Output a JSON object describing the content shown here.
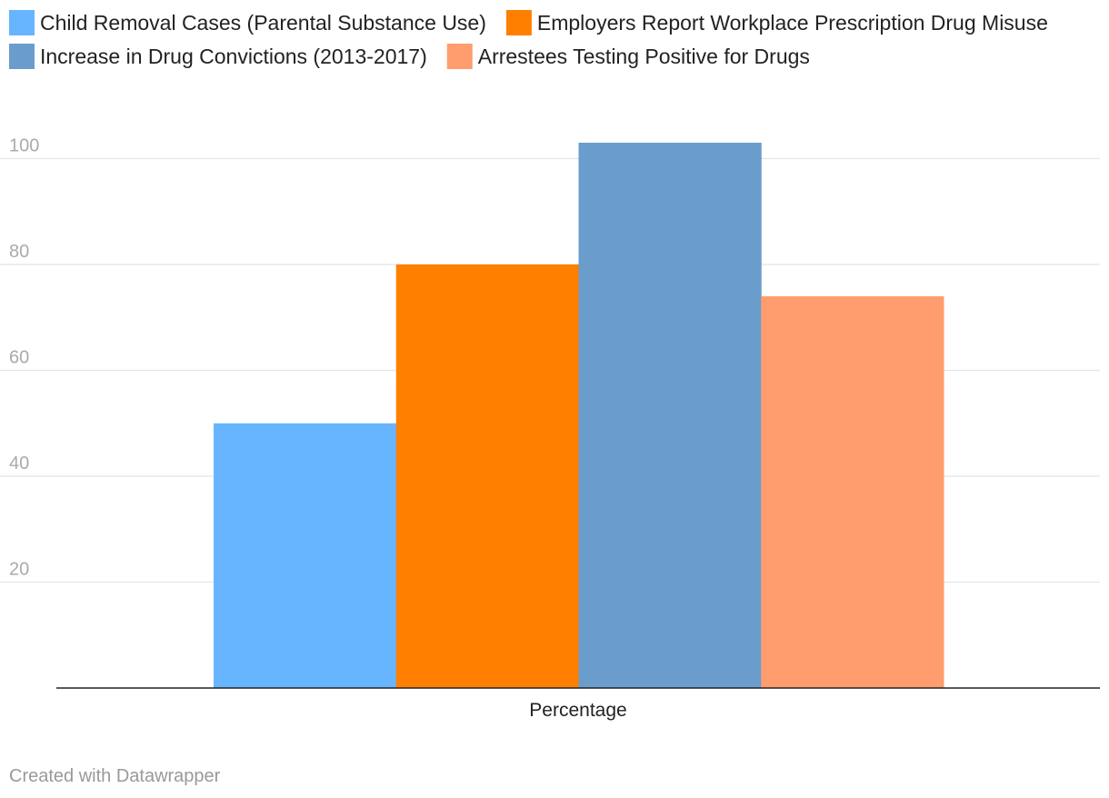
{
  "chart_data": {
    "type": "bar",
    "categories": [
      "Percentage"
    ],
    "series": [
      {
        "name": "Child Removal Cases (Parental Substance Use)",
        "values": [
          50
        ],
        "color": "#67b5ff"
      },
      {
        "name": "Employers Report Workplace Prescription Drug Misuse",
        "values": [
          80
        ],
        "color": "#ff7f00"
      },
      {
        "name": "Increase in Drug Convictions (2013-2017)",
        "values": [
          103
        ],
        "color": "#6a9dcc"
      },
      {
        "name": "Arrestees Testing Positive for Drugs",
        "values": [
          74
        ],
        "color": "#ff9d6e"
      }
    ],
    "y_ticks": [
      "20",
      "40",
      "60",
      "80",
      "100"
    ],
    "ylim": [
      0,
      108
    ],
    "grid": true,
    "legend_position": "top-left",
    "axis_color": "#222222",
    "grid_color": "#e4e4e4"
  },
  "footer": {
    "credit": "Created with Datawrapper"
  }
}
